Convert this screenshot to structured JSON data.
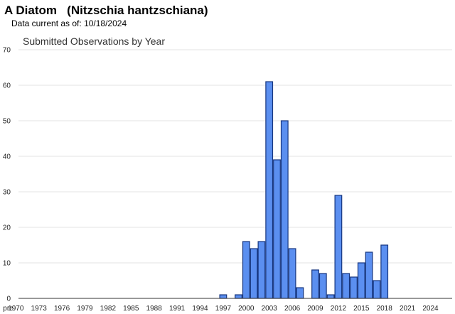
{
  "header": {
    "title": "A Diatom   (Nitzschia hantzschiana)",
    "data_current_label": "Data current as of:",
    "data_current_date": "10/18/2024"
  },
  "chart_data": {
    "type": "bar",
    "title": "Submitted Observations by Year",
    "xlabel": "",
    "ylabel": "",
    "ylim": [
      0,
      70
    ],
    "yticks": [
      0,
      10,
      20,
      30,
      40,
      50,
      60,
      70
    ],
    "grid": true,
    "categories": [
      "pre",
      "1970",
      "1971",
      "1972",
      "1973",
      "1974",
      "1975",
      "1976",
      "1977",
      "1978",
      "1979",
      "1980",
      "1981",
      "1982",
      "1983",
      "1984",
      "1985",
      "1986",
      "1987",
      "1988",
      "1989",
      "1990",
      "1991",
      "1992",
      "1993",
      "1994",
      "1995",
      "1996",
      "1997",
      "1998",
      "1999",
      "2000",
      "2001",
      "2002",
      "2003",
      "2004",
      "2005",
      "2006",
      "2007",
      "2008",
      "2009",
      "2010",
      "2011",
      "2012",
      "2013",
      "2014",
      "2015",
      "2016",
      "2017",
      "2018",
      "2019",
      "2020",
      "2021",
      "2022",
      "2023",
      "2024"
    ],
    "xtick_labels": [
      "pre",
      "1970",
      "1973",
      "1976",
      "1979",
      "1982",
      "1985",
      "1988",
      "1991",
      "1994",
      "1997",
      "2000",
      "2003",
      "2006",
      "2009",
      "2012",
      "2015",
      "2018",
      "2021",
      "2024"
    ],
    "values": [
      0,
      0,
      0,
      0,
      0,
      0,
      0,
      0,
      0,
      0,
      0,
      0,
      0,
      0,
      0,
      0,
      0,
      0,
      0,
      0,
      0,
      0,
      0,
      0,
      0,
      0,
      0,
      0,
      1,
      0,
      1,
      16,
      14,
      16,
      61,
      39,
      50,
      14,
      3,
      0,
      8,
      7,
      1,
      29,
      7,
      6,
      10,
      13,
      5,
      15,
      0,
      0,
      0,
      0,
      0,
      0
    ],
    "colors": {
      "bar_fill": "#5b8ff0",
      "bar_stroke": "#16357e"
    }
  }
}
